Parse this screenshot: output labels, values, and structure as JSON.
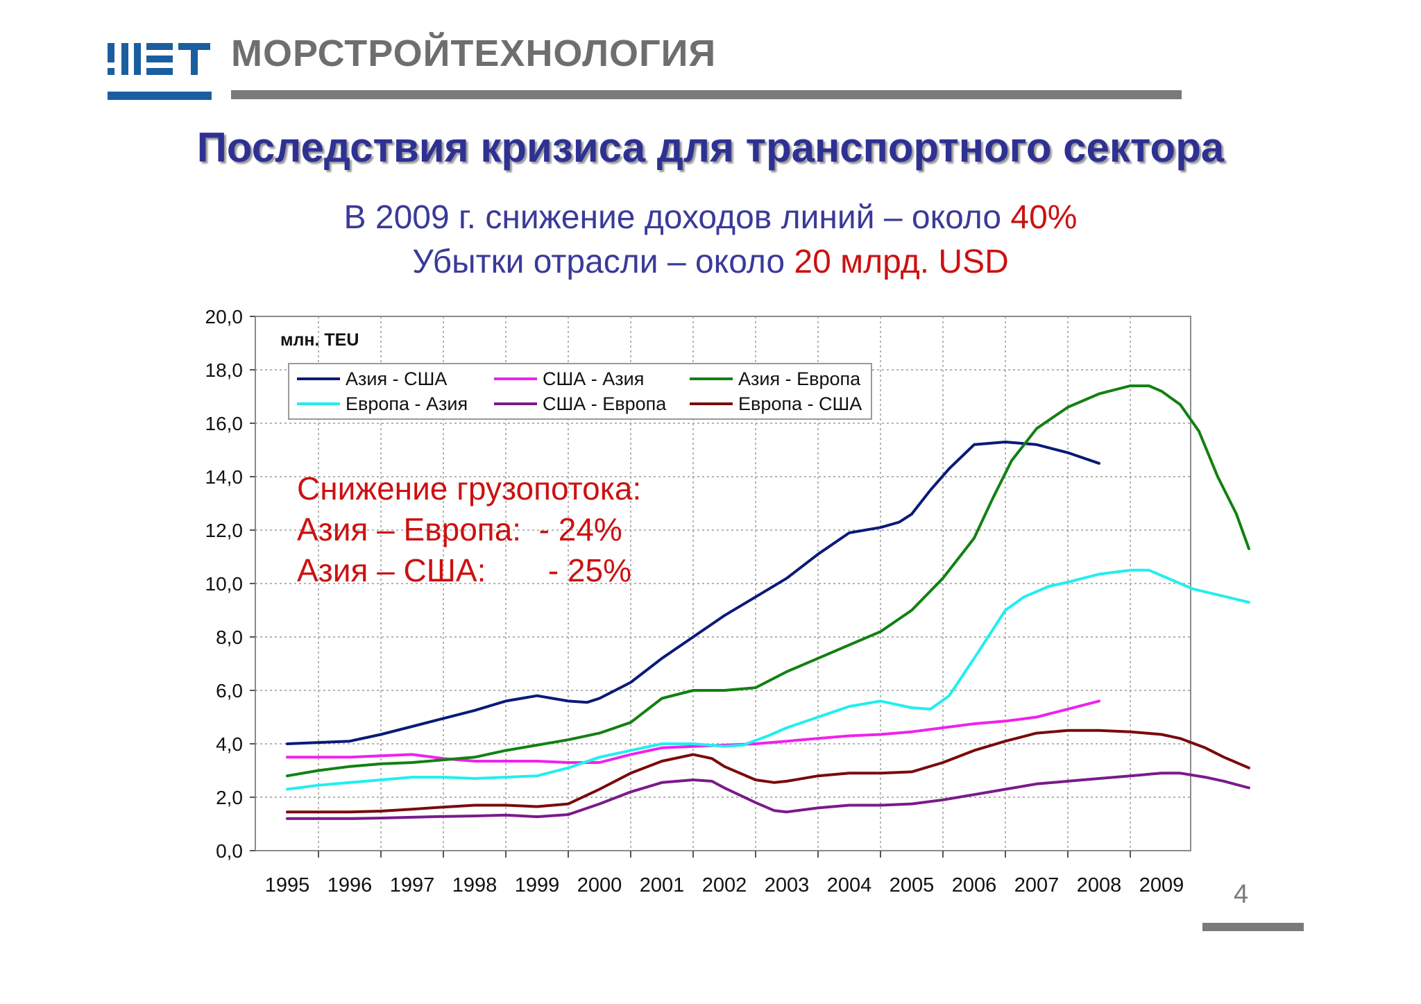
{
  "header": {
    "company": "МОРСТРОЙТЕХНОЛОГИЯ",
    "page_number": "4"
  },
  "slide": {
    "title": "Последствия кризиса для транспортного сектора",
    "sub1_main": "В 2009 г. снижение доходов линий – около ",
    "sub1_red": "40%",
    "sub2_main": "Убытки отрасли – около ",
    "sub2_red": "20 млрд. USD"
  },
  "colors": {
    "accent_blue": "#2e3192",
    "accent_red": "#cc1111",
    "grey": "#7a7a7a"
  },
  "chart_data": {
    "type": "line",
    "unit_label": "млн. TEU",
    "x": [
      "1995",
      "1996",
      "1997",
      "1998",
      "1999",
      "2000",
      "2001",
      "2002",
      "2003",
      "2004",
      "2005",
      "2006",
      "2007",
      "2008",
      "2009"
    ],
    "ylim": [
      0,
      20
    ],
    "yticks": [
      "0,0",
      "2,0",
      "4,0",
      "6,0",
      "8,0",
      "10,0",
      "12,0",
      "14,0",
      "16,0",
      "18,0",
      "20,0"
    ],
    "grid": true,
    "legend_position": "top-left",
    "annotation": [
      "Снижение грузопотока:",
      "Азия – Европа:  - 24%",
      "Азия – США:       - 25%"
    ],
    "series": [
      {
        "name": "Азия - США",
        "color": "#0a1a78",
        "points": [
          [
            1995,
            4.0
          ],
          [
            1995.5,
            4.05
          ],
          [
            1996,
            4.1
          ],
          [
            1996.5,
            4.35
          ],
          [
            1997,
            4.65
          ],
          [
            1997.5,
            4.95
          ],
          [
            1998,
            5.25
          ],
          [
            1998.5,
            5.6
          ],
          [
            1999,
            5.8
          ],
          [
            1999.5,
            5.6
          ],
          [
            1999.8,
            5.55
          ],
          [
            2000,
            5.7
          ],
          [
            2000.5,
            6.3
          ],
          [
            2001,
            7.2
          ],
          [
            2001.5,
            8.0
          ],
          [
            2002,
            8.8
          ],
          [
            2002.5,
            9.5
          ],
          [
            2003,
            10.2
          ],
          [
            2003.5,
            11.1
          ],
          [
            2004,
            11.9
          ],
          [
            2004.5,
            12.1
          ],
          [
            2004.8,
            12.3
          ],
          [
            2005,
            12.6
          ],
          [
            2005.3,
            13.5
          ],
          [
            2005.6,
            14.3
          ],
          [
            2006,
            15.2
          ],
          [
            2006.5,
            15.3
          ],
          [
            2007,
            15.2
          ],
          [
            2007.5,
            14.9
          ],
          [
            2008,
            14.5
          ]
        ]
      },
      {
        "name": "США - Азия",
        "color": "#ee22ee",
        "points": [
          [
            1995,
            3.5
          ],
          [
            1995.5,
            3.5
          ],
          [
            1996,
            3.5
          ],
          [
            1996.5,
            3.55
          ],
          [
            1997,
            3.6
          ],
          [
            1997.5,
            3.45
          ],
          [
            1998,
            3.35
          ],
          [
            1998.5,
            3.35
          ],
          [
            1999,
            3.35
          ],
          [
            1999.5,
            3.3
          ],
          [
            2000,
            3.3
          ],
          [
            2000.5,
            3.6
          ],
          [
            2001,
            3.85
          ],
          [
            2001.5,
            3.9
          ],
          [
            2002,
            3.95
          ],
          [
            2002.5,
            4.0
          ],
          [
            2003,
            4.1
          ],
          [
            2003.5,
            4.2
          ],
          [
            2004,
            4.3
          ],
          [
            2004.5,
            4.35
          ],
          [
            2005,
            4.45
          ],
          [
            2005.5,
            4.6
          ],
          [
            2006,
            4.75
          ],
          [
            2006.5,
            4.85
          ],
          [
            2007,
            5.0
          ],
          [
            2007.5,
            5.3
          ],
          [
            2008,
            5.6
          ]
        ]
      },
      {
        "name": "Азия - Европа",
        "color": "#128012",
        "points": [
          [
            1995,
            2.8
          ],
          [
            1995.5,
            3.0
          ],
          [
            1996,
            3.15
          ],
          [
            1996.5,
            3.25
          ],
          [
            1997,
            3.3
          ],
          [
            1997.5,
            3.4
          ],
          [
            1998,
            3.5
          ],
          [
            1998.5,
            3.75
          ],
          [
            1999,
            3.95
          ],
          [
            1999.5,
            4.15
          ],
          [
            2000,
            4.4
          ],
          [
            2000.5,
            4.8
          ],
          [
            2001,
            5.7
          ],
          [
            2001.5,
            6.0
          ],
          [
            2002,
            6.0
          ],
          [
            2002.5,
            6.1
          ],
          [
            2003,
            6.7
          ],
          [
            2003.5,
            7.2
          ],
          [
            2004,
            7.7
          ],
          [
            2004.5,
            8.2
          ],
          [
            2005,
            9.0
          ],
          [
            2005.5,
            10.2
          ],
          [
            2006,
            11.7
          ],
          [
            2006.3,
            13.2
          ],
          [
            2006.6,
            14.6
          ],
          [
            2007,
            15.8
          ],
          [
            2007.5,
            16.6
          ],
          [
            2008,
            17.1
          ],
          [
            2008.5,
            17.4
          ],
          [
            2008.8,
            17.4
          ],
          [
            2009,
            17.2
          ],
          [
            2009.3,
            16.7
          ],
          [
            2009.6,
            15.7
          ],
          [
            2009.9,
            14.0
          ],
          [
            2010.2,
            12.6
          ],
          [
            2010.4,
            11.3
          ]
        ]
      },
      {
        "name": "Европа - Азия",
        "color": "#22eeee",
        "points": [
          [
            1995,
            2.3
          ],
          [
            1995.5,
            2.45
          ],
          [
            1996,
            2.55
          ],
          [
            1996.5,
            2.65
          ],
          [
            1997,
            2.75
          ],
          [
            1997.5,
            2.75
          ],
          [
            1998,
            2.7
          ],
          [
            1998.5,
            2.75
          ],
          [
            1999,
            2.8
          ],
          [
            1999.5,
            3.1
          ],
          [
            2000,
            3.5
          ],
          [
            2000.5,
            3.75
          ],
          [
            2001,
            4.0
          ],
          [
            2001.5,
            4.0
          ],
          [
            2002,
            3.9
          ],
          [
            2002.3,
            3.95
          ],
          [
            2002.7,
            4.3
          ],
          [
            2003,
            4.6
          ],
          [
            2003.5,
            5.0
          ],
          [
            2004,
            5.4
          ],
          [
            2004.5,
            5.6
          ],
          [
            2005,
            5.35
          ],
          [
            2005.3,
            5.3
          ],
          [
            2005.6,
            5.8
          ],
          [
            2006,
            7.2
          ],
          [
            2006.5,
            9.0
          ],
          [
            2006.8,
            9.5
          ],
          [
            2007.2,
            9.9
          ],
          [
            2007.5,
            10.05
          ],
          [
            2008,
            10.35
          ],
          [
            2008.5,
            10.5
          ],
          [
            2008.8,
            10.5
          ],
          [
            2009,
            10.3
          ],
          [
            2009.5,
            9.8
          ],
          [
            2010.4,
            9.3
          ]
        ]
      },
      {
        "name": "США - Европа",
        "color": "#7a1a8a",
        "points": [
          [
            1995,
            1.2
          ],
          [
            1995.5,
            1.2
          ],
          [
            1996,
            1.2
          ],
          [
            1996.5,
            1.22
          ],
          [
            1997,
            1.25
          ],
          [
            1997.5,
            1.28
          ],
          [
            1998,
            1.3
          ],
          [
            1998.5,
            1.33
          ],
          [
            1999,
            1.27
          ],
          [
            1999.5,
            1.35
          ],
          [
            2000,
            1.75
          ],
          [
            2000.5,
            2.2
          ],
          [
            2001,
            2.55
          ],
          [
            2001.5,
            2.65
          ],
          [
            2001.8,
            2.6
          ],
          [
            2002,
            2.35
          ],
          [
            2002.5,
            1.8
          ],
          [
            2002.8,
            1.5
          ],
          [
            2003,
            1.45
          ],
          [
            2003.5,
            1.6
          ],
          [
            2004,
            1.7
          ],
          [
            2004.5,
            1.7
          ],
          [
            2005,
            1.75
          ],
          [
            2005.5,
            1.9
          ],
          [
            2006,
            2.1
          ],
          [
            2006.5,
            2.3
          ],
          [
            2007,
            2.5
          ],
          [
            2007.5,
            2.6
          ],
          [
            2008,
            2.7
          ],
          [
            2008.5,
            2.8
          ],
          [
            2009,
            2.9
          ],
          [
            2009.3,
            2.9
          ],
          [
            2009.7,
            2.75
          ],
          [
            2010,
            2.6
          ],
          [
            2010.4,
            2.35
          ]
        ]
      },
      {
        "name": "Европа - США",
        "color": "#7a0a0a",
        "points": [
          [
            1995,
            1.45
          ],
          [
            1995.5,
            1.45
          ],
          [
            1996,
            1.45
          ],
          [
            1996.5,
            1.48
          ],
          [
            1997,
            1.55
          ],
          [
            1997.5,
            1.63
          ],
          [
            1998,
            1.7
          ],
          [
            1998.5,
            1.7
          ],
          [
            1999,
            1.65
          ],
          [
            1999.5,
            1.75
          ],
          [
            2000,
            2.3
          ],
          [
            2000.5,
            2.9
          ],
          [
            2001,
            3.35
          ],
          [
            2001.5,
            3.6
          ],
          [
            2001.8,
            3.45
          ],
          [
            2002,
            3.15
          ],
          [
            2002.5,
            2.65
          ],
          [
            2002.8,
            2.55
          ],
          [
            2003,
            2.6
          ],
          [
            2003.5,
            2.8
          ],
          [
            2004,
            2.9
          ],
          [
            2004.5,
            2.9
          ],
          [
            2005,
            2.95
          ],
          [
            2005.5,
            3.3
          ],
          [
            2006,
            3.75
          ],
          [
            2006.5,
            4.1
          ],
          [
            2007,
            4.4
          ],
          [
            2007.5,
            4.5
          ],
          [
            2008,
            4.5
          ],
          [
            2008.5,
            4.45
          ],
          [
            2009,
            4.35
          ],
          [
            2009.3,
            4.2
          ],
          [
            2009.7,
            3.85
          ],
          [
            2010,
            3.5
          ],
          [
            2010.4,
            3.1
          ]
        ]
      }
    ]
  }
}
